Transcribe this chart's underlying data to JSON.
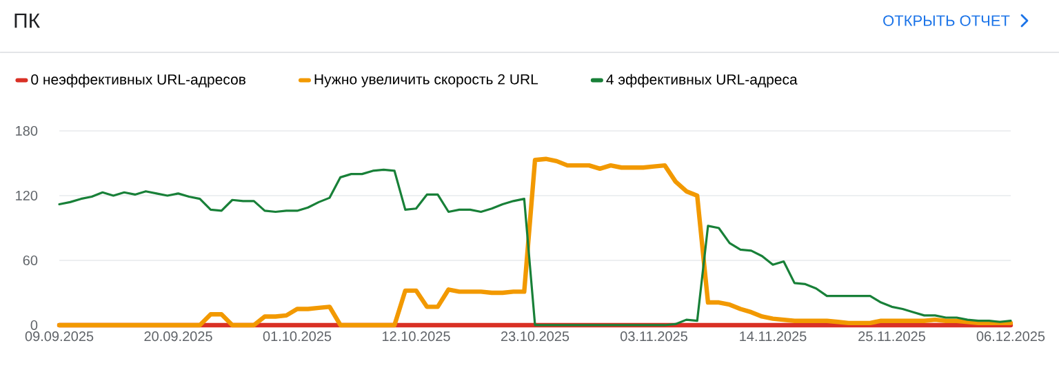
{
  "chart_data": {
    "type": "line",
    "title": "ПК",
    "annotations": [
      "ОТКРЫТЬ ОТЧЕТ"
    ],
    "x": [
      "2025-09-09",
      "2025-09-10",
      "2025-09-11",
      "2025-09-12",
      "2025-09-13",
      "2025-09-14",
      "2025-09-15",
      "2025-09-16",
      "2025-09-17",
      "2025-09-18",
      "2025-09-19",
      "2025-09-20",
      "2025-09-21",
      "2025-09-22",
      "2025-09-23",
      "2025-09-24",
      "2025-09-25",
      "2025-09-26",
      "2025-09-27",
      "2025-09-28",
      "2025-09-29",
      "2025-09-30",
      "2025-10-01",
      "2025-10-02",
      "2025-10-03",
      "2025-10-04",
      "2025-10-05",
      "2025-10-06",
      "2025-10-07",
      "2025-10-08",
      "2025-10-09",
      "2025-10-10",
      "2025-10-11",
      "2025-10-12",
      "2025-10-13",
      "2025-10-14",
      "2025-10-15",
      "2025-10-16",
      "2025-10-17",
      "2025-10-18",
      "2025-10-19",
      "2025-10-20",
      "2025-10-21",
      "2025-10-22",
      "2025-10-23",
      "2025-10-24",
      "2025-10-25",
      "2025-10-26",
      "2025-10-27",
      "2025-10-28",
      "2025-10-29",
      "2025-10-30",
      "2025-10-31",
      "2025-11-01",
      "2025-11-02",
      "2025-11-03",
      "2025-11-04",
      "2025-11-05",
      "2025-11-06",
      "2025-11-07",
      "2025-11-08",
      "2025-11-09",
      "2025-11-10",
      "2025-11-11",
      "2025-11-12",
      "2025-11-13",
      "2025-11-14",
      "2025-11-15",
      "2025-11-16",
      "2025-11-17",
      "2025-11-18",
      "2025-11-19",
      "2025-11-20",
      "2025-11-21",
      "2025-11-22",
      "2025-11-23",
      "2025-11-24",
      "2025-11-25",
      "2025-11-26",
      "2025-11-27",
      "2025-11-28",
      "2025-11-29",
      "2025-11-30",
      "2025-12-01",
      "2025-12-02",
      "2025-12-03",
      "2025-12-04",
      "2025-12-05",
      "2025-12-06"
    ],
    "series": [
      {
        "name": "0 неэффективных URL-адресов",
        "color": "#d93025",
        "values": [
          0,
          0,
          0,
          0,
          0,
          0,
          0,
          0,
          0,
          0,
          0,
          0,
          0,
          0,
          0,
          0,
          0,
          0,
          0,
          0,
          0,
          0,
          0,
          0,
          0,
          0,
          0,
          0,
          0,
          0,
          0,
          0,
          0,
          0,
          0,
          0,
          0,
          0,
          0,
          0,
          0,
          0,
          0,
          0,
          0,
          0,
          0,
          0,
          0,
          0,
          0,
          0,
          0,
          0,
          0,
          0,
          0,
          0,
          0,
          0,
          0,
          0,
          0,
          0,
          0,
          0,
          0,
          0,
          0,
          0,
          0,
          0,
          0,
          0,
          0,
          0,
          0,
          0,
          0,
          0,
          0,
          0,
          0,
          0,
          0,
          0,
          0,
          0,
          0
        ]
      },
      {
        "name": "Нужно увеличить скорость 2 URL",
        "color": "#f29900",
        "values": [
          0,
          0,
          0,
          0,
          0,
          0,
          0,
          0,
          0,
          0,
          0,
          0,
          0,
          0,
          10,
          10,
          0,
          0,
          0,
          8,
          8,
          9,
          15,
          15,
          16,
          17,
          0,
          0,
          0,
          0,
          0,
          0,
          32,
          32,
          17,
          17,
          33,
          31,
          31,
          31,
          30,
          30,
          31,
          31,
          153,
          154,
          152,
          148,
          148,
          148,
          145,
          148,
          146,
          146,
          146,
          147,
          148,
          133,
          124,
          120,
          21,
          21,
          19,
          15,
          12,
          8,
          6,
          5,
          4,
          4,
          4,
          4,
          3,
          2,
          2,
          2,
          4,
          4,
          4,
          4,
          4,
          5,
          4,
          4,
          3,
          2,
          2,
          2,
          2
        ]
      },
      {
        "name": "4 эффективных URL-адреса",
        "color": "#188038",
        "values": [
          112,
          114,
          117,
          119,
          123,
          120,
          123,
          121,
          124,
          122,
          120,
          122,
          119,
          117,
          107,
          106,
          116,
          115,
          115,
          106,
          105,
          106,
          106,
          109,
          114,
          118,
          137,
          140,
          140,
          143,
          144,
          143,
          107,
          108,
          121,
          121,
          105,
          107,
          107,
          105,
          108,
          112,
          115,
          117,
          0,
          0,
          0,
          0,
          0,
          0,
          0,
          0,
          0,
          0,
          0,
          0,
          0,
          1,
          5,
          4,
          92,
          90,
          76,
          70,
          69,
          64,
          56,
          59,
          39,
          38,
          34,
          27,
          27,
          27,
          27,
          27,
          21,
          17,
          15,
          12,
          9,
          9,
          7,
          7,
          5,
          4,
          4,
          3,
          4
        ]
      }
    ],
    "xlim": [
      "2025-09-09",
      "2025-12-06"
    ],
    "xticks": [
      {
        "value": "2025-09-09",
        "label": "09.09.2025"
      },
      {
        "value": "2025-09-20",
        "label": "20.09.2025"
      },
      {
        "value": "2025-10-01",
        "label": "01.10.2025"
      },
      {
        "value": "2025-10-12",
        "label": "12.10.2025"
      },
      {
        "value": "2025-10-23",
        "label": "23.10.2025"
      },
      {
        "value": "2025-11-03",
        "label": "03.11.2025"
      },
      {
        "value": "2025-11-14",
        "label": "14.11.2025"
      },
      {
        "value": "2025-11-25",
        "label": "25.11.2025"
      },
      {
        "value": "2025-12-06",
        "label": "06.12.2025"
      }
    ],
    "ylim": [
      0,
      180
    ],
    "yticks": [
      0,
      60,
      120,
      180
    ],
    "grid": "y",
    "legend": "top",
    "marker": "none",
    "line_style": "solid"
  }
}
